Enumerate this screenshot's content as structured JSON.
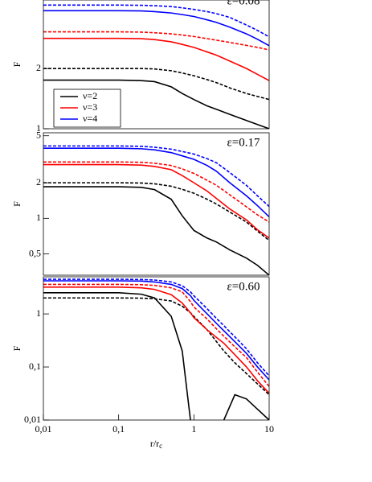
{
  "chart_data": [
    {
      "type": "line",
      "title": "ε=0.08",
      "ylabel": "F",
      "xscale": "log",
      "yscale": "log",
      "xlim": [
        0.01,
        10
      ],
      "ylim": [
        1,
        4.4
      ],
      "yticks": [
        1,
        2
      ],
      "legend": "lower left",
      "x": [
        0.01,
        0.1,
        0.2,
        0.3,
        0.5,
        0.7,
        1,
        1.5,
        2,
        3,
        5,
        7,
        10
      ],
      "series": [
        {
          "name": "ν=2",
          "color": "#000000",
          "linestyle": "solid",
          "values": [
            1.75,
            1.75,
            1.74,
            1.72,
            1.62,
            1.5,
            1.4,
            1.3,
            1.25,
            1.18,
            1.1,
            1.05,
            1.0
          ]
        },
        {
          "color": "#000000",
          "linestyle": "dashed",
          "values": [
            2.0,
            2.0,
            2.0,
            1.99,
            1.95,
            1.9,
            1.84,
            1.76,
            1.7,
            1.6,
            1.5,
            1.45,
            1.4
          ]
        },
        {
          "name": "ν=3",
          "color": "#ff0000",
          "linestyle": "solid",
          "values": [
            2.83,
            2.83,
            2.82,
            2.79,
            2.72,
            2.64,
            2.55,
            2.42,
            2.33,
            2.18,
            2.0,
            1.87,
            1.74
          ]
        },
        {
          "color": "#ff0000",
          "linestyle": "dashed",
          "values": [
            3.05,
            3.05,
            3.04,
            3.02,
            2.98,
            2.94,
            2.89,
            2.82,
            2.77,
            2.7,
            2.61,
            2.55,
            2.48
          ]
        },
        {
          "name": "ν=4",
          "color": "#0000ff",
          "linestyle": "solid",
          "values": [
            3.89,
            3.89,
            3.88,
            3.85,
            3.79,
            3.72,
            3.64,
            3.5,
            3.4,
            3.22,
            2.98,
            2.8,
            2.6
          ]
        },
        {
          "color": "#0000ff",
          "linestyle": "dashed",
          "values": [
            4.15,
            4.15,
            4.14,
            4.12,
            4.08,
            4.02,
            3.95,
            3.85,
            3.76,
            3.6,
            3.3,
            3.1,
            2.88
          ]
        }
      ]
    },
    {
      "type": "line",
      "title": "ε=0.17",
      "ylabel": "F",
      "xscale": "log",
      "yscale": "log",
      "xlim": [
        0.01,
        10
      ],
      "ylim": [
        0.33,
        5.3
      ],
      "yticks": [
        {
          "value": 0.5,
          "label": "0,5"
        },
        1,
        2,
        5
      ],
      "x": [
        0.01,
        0.1,
        0.2,
        0.3,
        0.5,
        0.7,
        1,
        1.5,
        2,
        3,
        5,
        7,
        10
      ],
      "series": [
        {
          "color": "#000000",
          "linestyle": "solid",
          "values": [
            1.85,
            1.85,
            1.83,
            1.75,
            1.45,
            1.05,
            0.79,
            0.68,
            0.63,
            0.54,
            0.46,
            0.4,
            0.33
          ]
        },
        {
          "color": "#000000",
          "linestyle": "dashed",
          "values": [
            2.0,
            2.0,
            1.99,
            1.96,
            1.87,
            1.76,
            1.63,
            1.45,
            1.32,
            1.13,
            0.93,
            0.78,
            0.65
          ]
        },
        {
          "color": "#ff0000",
          "linestyle": "solid",
          "values": [
            2.85,
            2.85,
            2.82,
            2.75,
            2.58,
            2.3,
            2.0,
            1.7,
            1.47,
            1.2,
            0.97,
            0.8,
            0.68
          ]
        },
        {
          "color": "#ff0000",
          "linestyle": "dashed",
          "values": [
            3.0,
            3.0,
            2.98,
            2.93,
            2.8,
            2.62,
            2.4,
            2.1,
            1.9,
            1.58,
            1.25,
            1.07,
            0.93
          ]
        },
        {
          "color": "#0000ff",
          "linestyle": "solid",
          "values": [
            3.92,
            3.92,
            3.88,
            3.8,
            3.6,
            3.38,
            3.16,
            2.8,
            2.5,
            2.0,
            1.55,
            1.28,
            1.03
          ]
        },
        {
          "color": "#0000ff",
          "linestyle": "dashed",
          "values": [
            4.1,
            4.1,
            4.07,
            4.0,
            3.85,
            3.68,
            3.5,
            3.2,
            2.95,
            2.44,
            1.9,
            1.55,
            1.26
          ]
        }
      ]
    },
    {
      "type": "line",
      "title": "ε=0.60",
      "ylabel": "F",
      "xlabel": "r/r",
      "xlabel_sub": "c",
      "xscale": "log",
      "yscale": "log",
      "xlim": [
        0.01,
        10
      ],
      "ylim": [
        0.01,
        5.0
      ],
      "xticks": [
        {
          "value": 0.01,
          "label": "0,01"
        },
        {
          "value": 0.1,
          "label": "0,1"
        },
        1,
        10
      ],
      "yticks": [
        {
          "value": 0.01,
          "label": "0,01"
        },
        {
          "value": 0.1,
          "label": "0,1"
        },
        1
      ],
      "x": [
        0.01,
        0.1,
        0.2,
        0.3,
        0.5,
        0.7,
        0.9,
        1,
        1.5,
        2,
        2.5,
        3.5,
        5,
        7,
        10
      ],
      "series": [
        {
          "color": "#000000",
          "linestyle": "solid",
          "values": [
            2.5,
            2.5,
            2.35,
            2.0,
            0.9,
            0.2,
            0.01,
            null,
            null,
            null,
            0.01,
            0.03,
            0.025,
            0.016,
            0.01
          ]
        },
        {
          "color": "#000000",
          "linestyle": "dashed",
          "values": [
            2.0,
            2.0,
            1.98,
            1.93,
            1.75,
            1.4,
            1.05,
            0.9,
            0.5,
            0.3,
            0.2,
            0.12,
            0.075,
            0.048,
            0.03
          ]
        },
        {
          "color": "#ff0000",
          "linestyle": "solid",
          "values": [
            3.2,
            3.2,
            3.1,
            2.9,
            2.3,
            1.6,
            1.05,
            0.85,
            0.5,
            0.36,
            0.28,
            0.17,
            0.1,
            0.055,
            0.032
          ]
        },
        {
          "color": "#ff0000",
          "linestyle": "dashed",
          "values": [
            3.6,
            3.6,
            3.55,
            3.45,
            3.1,
            2.6,
            1.7,
            1.35,
            0.8,
            0.52,
            0.38,
            0.24,
            0.15,
            0.08,
            0.043
          ]
        },
        {
          "color": "#0000ff",
          "linestyle": "solid",
          "values": [
            4.2,
            4.2,
            4.15,
            4.0,
            3.6,
            3.0,
            2.2,
            1.8,
            1.0,
            0.66,
            0.48,
            0.3,
            0.18,
            0.1,
            0.057
          ]
        },
        {
          "color": "#0000ff",
          "linestyle": "dashed",
          "values": [
            4.5,
            4.5,
            4.45,
            4.35,
            4.0,
            3.4,
            2.6,
            2.2,
            1.25,
            0.82,
            0.6,
            0.37,
            0.22,
            0.12,
            0.068
          ]
        }
      ]
    }
  ]
}
